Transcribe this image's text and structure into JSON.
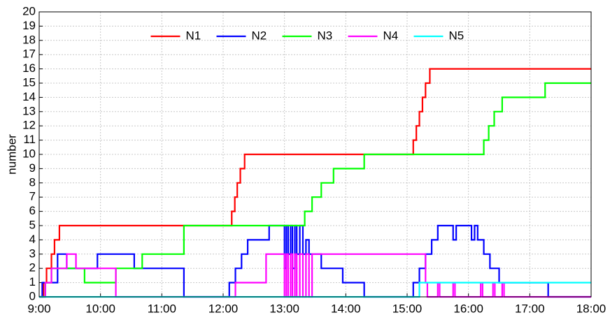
{
  "chart_data": {
    "type": "step",
    "ylabel": "number",
    "xlim": [
      9,
      18
    ],
    "xticks": [
      {
        "value": 9,
        "label": "9:00"
      },
      {
        "value": 10,
        "label": "10:00"
      },
      {
        "value": 11,
        "label": "11:00"
      },
      {
        "value": 12,
        "label": "12:00"
      },
      {
        "value": 13,
        "label": "13:00"
      },
      {
        "value": 14,
        "label": "14:00"
      },
      {
        "value": 15,
        "label": "15:00"
      },
      {
        "value": 16,
        "label": "16:00"
      },
      {
        "value": 17,
        "label": "17:00"
      },
      {
        "value": 18,
        "label": "18:00"
      }
    ],
    "ylim": [
      0,
      20
    ],
    "yticks": [
      0,
      1,
      2,
      3,
      4,
      5,
      6,
      7,
      8,
      9,
      10,
      11,
      12,
      13,
      14,
      15,
      16,
      17,
      18,
      19,
      20
    ],
    "grid": true,
    "legend": "top-center",
    "series": [
      {
        "name": "N1",
        "color": "#ff0000",
        "x": [
          9,
          9.07,
          9.12,
          9.2,
          9.25,
          9.33,
          12.14,
          12.19,
          12.23,
          12.28,
          12.35,
          15.1,
          15.15,
          15.2,
          15.25,
          15.3,
          15.37,
          18
        ],
        "values": [
          0,
          1,
          2,
          3,
          4,
          5,
          6,
          7,
          8,
          9,
          10,
          11,
          12,
          13,
          14,
          15,
          16,
          16
        ]
      },
      {
        "name": "N2",
        "color": "#0000ff",
        "x": [
          9,
          9.05,
          9.3,
          9.45,
          9.95,
          10.55,
          11.36,
          12.1,
          12.2,
          12.3,
          12.4,
          12.75,
          13.0,
          13.03,
          13.06,
          13.1,
          13.13,
          13.17,
          13.2,
          13.25,
          13.3,
          13.35,
          13.4,
          13.5,
          13.6,
          13.95,
          14.3,
          15.1,
          15.2,
          15.3,
          15.4,
          15.5,
          15.75,
          15.8,
          16.05,
          16.1,
          16.15,
          16.25,
          16.35,
          16.5,
          17.3,
          18
        ],
        "values": [
          0,
          1,
          3,
          2,
          3,
          2,
          0,
          1,
          2,
          3,
          4,
          5,
          2,
          5,
          3,
          5,
          2,
          5,
          3,
          5,
          3,
          4,
          3,
          3,
          2,
          1,
          0,
          1,
          2,
          3,
          4,
          5,
          4,
          5,
          4,
          5,
          4,
          3,
          2,
          1,
          0,
          0
        ]
      },
      {
        "name": "N3",
        "color": "#00ff00",
        "x": [
          9,
          9.1,
          9.2,
          9.74,
          10.25,
          10.68,
          11.36,
          13.33,
          13.45,
          13.6,
          13.8,
          14.3,
          16.25,
          16.33,
          16.42,
          16.55,
          17.25,
          18
        ],
        "values": [
          0,
          1,
          2,
          1,
          2,
          3,
          5,
          6,
          7,
          8,
          9,
          10,
          11,
          12,
          13,
          14,
          15,
          15
        ]
      },
      {
        "name": "N4",
        "color": "#ff00ff",
        "x": [
          9,
          9.1,
          9.2,
          9.45,
          9.6,
          10.25,
          12.2,
          12.7,
          13.0,
          13.03,
          13.06,
          13.1,
          13.13,
          13.17,
          13.2,
          13.25,
          13.3,
          13.35,
          13.4,
          13.45,
          15.3,
          15.33,
          15.5,
          15.53,
          15.75,
          15.78,
          16.2,
          16.23,
          16.4,
          16.43,
          16.55,
          16.58,
          18
        ],
        "values": [
          0,
          1,
          2,
          3,
          2,
          0,
          1,
          3,
          0,
          3,
          0,
          3,
          0,
          3,
          0,
          3,
          0,
          3,
          0,
          3,
          1,
          0,
          1,
          0,
          1,
          0,
          1,
          0,
          1,
          0,
          1,
          0,
          0
        ]
      },
      {
        "name": "N5",
        "color": "#00ffff",
        "x": [
          9,
          15.2,
          18
        ],
        "values": [
          0,
          1,
          1
        ]
      }
    ]
  }
}
